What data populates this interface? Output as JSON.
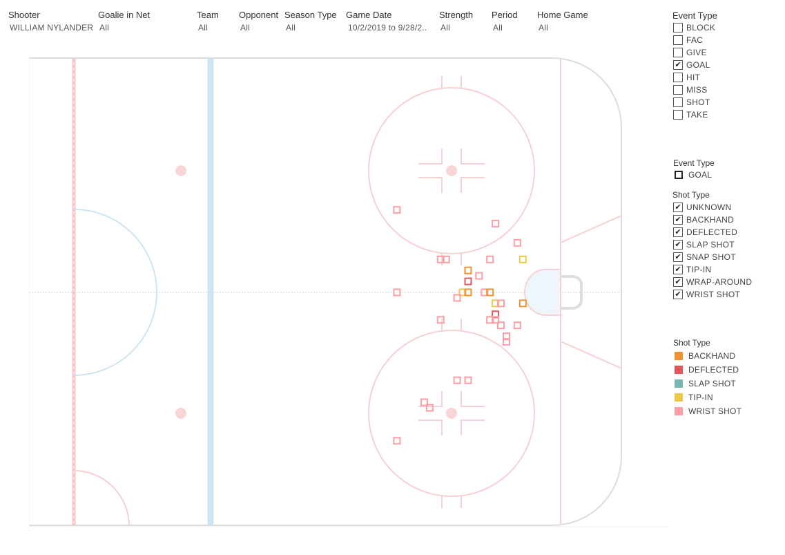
{
  "filters": [
    {
      "label": "Shooter",
      "value": "WILLIAM NYLANDER"
    },
    {
      "label": "Goalie in Net",
      "value": "All"
    },
    {
      "label": "Team",
      "value": "All"
    },
    {
      "label": "Opponent",
      "value": "All"
    },
    {
      "label": "Season Type",
      "value": "All"
    },
    {
      "label": "Game Date",
      "value": "10/2/2019 to 9/28/2.."
    },
    {
      "label": "Strength",
      "value": "All"
    },
    {
      "label": "Period",
      "value": "All"
    },
    {
      "label": "Home Game",
      "value": "All"
    }
  ],
  "event_type_filter": {
    "title": "Event Type",
    "options": [
      {
        "label": "BLOCK",
        "checked": false
      },
      {
        "label": "FAC",
        "checked": false
      },
      {
        "label": "GIVE",
        "checked": false
      },
      {
        "label": "GOAL",
        "checked": true
      },
      {
        "label": "HIT",
        "checked": false
      },
      {
        "label": "MISS",
        "checked": false
      },
      {
        "label": "SHOT",
        "checked": false
      },
      {
        "label": "TAKE",
        "checked": false
      }
    ]
  },
  "event_type_legend": {
    "title": "Event Type",
    "items": [
      {
        "label": "GOAL"
      }
    ]
  },
  "shot_type_filter": {
    "title": "Shot Type",
    "options": [
      {
        "label": "UNKNOWN",
        "checked": true
      },
      {
        "label": "BACKHAND",
        "checked": true
      },
      {
        "label": "DEFLECTED",
        "checked": true
      },
      {
        "label": "SLAP SHOT",
        "checked": true
      },
      {
        "label": "SNAP SHOT",
        "checked": true
      },
      {
        "label": "TIP-IN",
        "checked": true
      },
      {
        "label": "WRAP-AROUND",
        "checked": true
      },
      {
        "label": "WRIST SHOT",
        "checked": true
      }
    ]
  },
  "shot_type_legend": {
    "title": "Shot Type",
    "items": [
      {
        "label": "BACKHAND",
        "color": "#f0922e"
      },
      {
        "label": "DEFLECTED",
        "color": "#e15759"
      },
      {
        "label": "SLAP SHOT",
        "color": "#76b7b2"
      },
      {
        "label": "TIP-IN",
        "color": "#edc948"
      },
      {
        "label": "WRIST SHOT",
        "color": "#ff9da7"
      }
    ]
  },
  "chart_data": {
    "type": "scatter",
    "title": "",
    "x_label": "",
    "y_label": "",
    "x_range": [
      0,
      100
    ],
    "y_range": [
      -42.5,
      42.5
    ],
    "events": [
      {
        "x": 59,
        "y": 15,
        "shot_type": "WRIST SHOT"
      },
      {
        "x": 77,
        "y": 12.5,
        "shot_type": "WRIST SHOT"
      },
      {
        "x": 81,
        "y": 9,
        "shot_type": "WRIST SHOT"
      },
      {
        "x": 82,
        "y": 6,
        "shot_type": "TIP-IN"
      },
      {
        "x": 67,
        "y": 6,
        "shot_type": "WRIST SHOT"
      },
      {
        "x": 68,
        "y": 6,
        "shot_type": "WRIST SHOT"
      },
      {
        "x": 76,
        "y": 6,
        "shot_type": "WRIST SHOT"
      },
      {
        "x": 72,
        "y": 4,
        "shot_type": "BACKHAND"
      },
      {
        "x": 74,
        "y": 3,
        "shot_type": "WRIST SHOT"
      },
      {
        "x": 72,
        "y": 2,
        "shot_type": "DEFLECTED"
      },
      {
        "x": 59,
        "y": 0,
        "shot_type": "WRIST SHOT"
      },
      {
        "x": 71,
        "y": 0,
        "shot_type": "TIP-IN"
      },
      {
        "x": 72,
        "y": 0,
        "shot_type": "BACKHAND"
      },
      {
        "x": 75,
        "y": 0,
        "shot_type": "WRIST SHOT"
      },
      {
        "x": 76,
        "y": 0,
        "shot_type": "BACKHAND"
      },
      {
        "x": 70,
        "y": -1,
        "shot_type": "WRIST SHOT"
      },
      {
        "x": 77,
        "y": -2,
        "shot_type": "TIP-IN"
      },
      {
        "x": 78,
        "y": -2,
        "shot_type": "WRIST SHOT"
      },
      {
        "x": 82,
        "y": -2,
        "shot_type": "BACKHAND"
      },
      {
        "x": 77,
        "y": -4,
        "shot_type": "DEFLECTED"
      },
      {
        "x": 67,
        "y": -5,
        "shot_type": "WRIST SHOT"
      },
      {
        "x": 76,
        "y": -5,
        "shot_type": "WRIST SHOT"
      },
      {
        "x": 77,
        "y": -5,
        "shot_type": "WRIST SHOT"
      },
      {
        "x": 78,
        "y": -6,
        "shot_type": "WRIST SHOT"
      },
      {
        "x": 81,
        "y": -6,
        "shot_type": "WRIST SHOT"
      },
      {
        "x": 79,
        "y": -8,
        "shot_type": "WRIST SHOT"
      },
      {
        "x": 79,
        "y": -9,
        "shot_type": "WRIST SHOT"
      },
      {
        "x": 70,
        "y": -16,
        "shot_type": "WRIST SHOT"
      },
      {
        "x": 72,
        "y": -16,
        "shot_type": "WRIST SHOT"
      },
      {
        "x": 64,
        "y": -20,
        "shot_type": "WRIST SHOT"
      },
      {
        "x": 65,
        "y": -21,
        "shot_type": "WRIST SHOT"
      },
      {
        "x": 59,
        "y": -27,
        "shot_type": "WRIST SHOT"
      }
    ]
  }
}
